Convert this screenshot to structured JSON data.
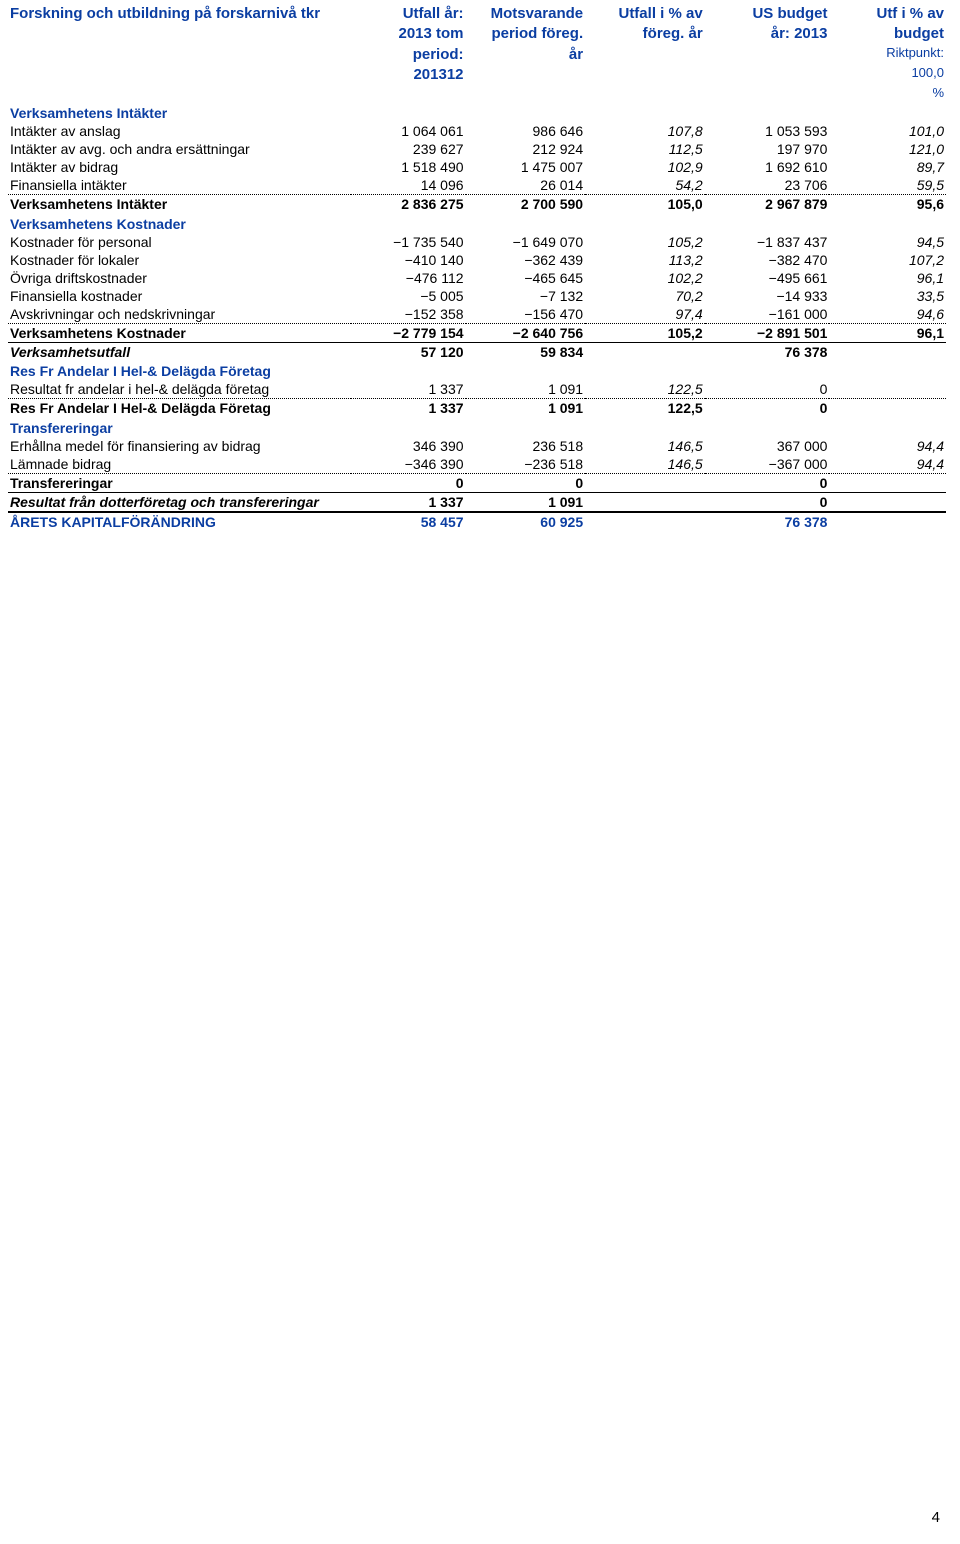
{
  "header": {
    "title": "Forskning och utbildning på forskarnivå tkr",
    "cols": [
      "Utfall år: 2013 tom period: 201312",
      "Motsvarande period föreg. år",
      "Utfall i % av föreg. år",
      "US budget år: 2013",
      "Utf i % av budget Riktpunkt: 100,0 %"
    ],
    "col1_l1": "Utfall år:",
    "col1_l2": "2013 tom",
    "col1_l3": "period:",
    "col1_l4": "201312",
    "col2_l1": "Motsvarande",
    "col2_l2": "period föreg.",
    "col2_l3": "år",
    "col3_l1": "Utfall i % av",
    "col3_l2": "föreg. år",
    "col4_l1": "US budget",
    "col4_l2": "år: 2013",
    "col5_l1": "Utf i % av",
    "col5_l2": "budget",
    "col5_l3": "Riktpunkt:",
    "col5_l4": "100,0",
    "col5_l5": "%"
  },
  "intakter": {
    "title": "Verksamhetens Intäkter",
    "rows": [
      {
        "label": "Intäkter av anslag",
        "c1": "1 064 061",
        "c2": "986 646",
        "c3": "107,8",
        "c4": "1 053 593",
        "c5": "101,0"
      },
      {
        "label": "Intäkter av avg. och andra ersättningar",
        "c1": "239 627",
        "c2": "212 924",
        "c3": "112,5",
        "c4": "197 970",
        "c5": "121,0"
      },
      {
        "label": "Intäkter av bidrag",
        "c1": "1 518 490",
        "c2": "1 475 007",
        "c3": "102,9",
        "c4": "1 692 610",
        "c5": "89,7"
      },
      {
        "label": "Finansiella intäkter",
        "c1": "14 096",
        "c2": "26 014",
        "c3": "54,2",
        "c4": "23 706",
        "c5": "59,5"
      }
    ],
    "subtotal": {
      "label": "Verksamhetens Intäkter",
      "c1": "2 836 275",
      "c2": "2 700 590",
      "c3": "105,0",
      "c4": "2 967 879",
      "c5": "95,6"
    }
  },
  "kostnader": {
    "title": "Verksamhetens Kostnader",
    "rows": [
      {
        "label": "Kostnader för personal",
        "c1": "−1 735 540",
        "c2": "−1 649 070",
        "c3": "105,2",
        "c4": "−1 837 437",
        "c5": "94,5"
      },
      {
        "label": "Kostnader för lokaler",
        "c1": "−410 140",
        "c2": "−362 439",
        "c3": "113,2",
        "c4": "−382 470",
        "c5": "107,2"
      },
      {
        "label": "Övriga driftskostnader",
        "c1": "−476 112",
        "c2": "−465 645",
        "c3": "102,2",
        "c4": "−495 661",
        "c5": "96,1"
      },
      {
        "label": "Finansiella kostnader",
        "c1": "−5 005",
        "c2": "−7 132",
        "c3": "70,2",
        "c4": "−14 933",
        "c5": "33,5"
      },
      {
        "label": "Avskrivningar och nedskrivningar",
        "c1": "−152 358",
        "c2": "−156 470",
        "c3": "97,4",
        "c4": "−161 000",
        "c5": "94,6"
      }
    ],
    "subtotal": {
      "label": "Verksamhetens Kostnader",
      "c1": "−2 779 154",
      "c2": "−2 640 756",
      "c3": "105,2",
      "c4": "−2 891 501",
      "c5": "96,1"
    }
  },
  "verksamhetsutfall": {
    "label": "Verksamhetsutfall",
    "c1": "57 120",
    "c2": "59 834",
    "c3": "",
    "c4": "76 378",
    "c5": ""
  },
  "resfr": {
    "title": "Res Fr Andelar I Hel-& Delägda Företag",
    "rows": [
      {
        "label": "Resultat fr andelar i hel-& delägda företag",
        "c1": "1 337",
        "c2": "1 091",
        "c3": "122,5",
        "c4": "0",
        "c5": ""
      }
    ],
    "subtotal": {
      "label": "Res Fr Andelar I Hel-& Delägda Företag",
      "c1": "1 337",
      "c2": "1 091",
      "c3": "122,5",
      "c4": "0",
      "c5": ""
    }
  },
  "transfer": {
    "title": "Transfereringar",
    "rows": [
      {
        "label": "Erhållna medel för finansiering av bidrag",
        "c1": "346 390",
        "c2": "236 518",
        "c3": "146,5",
        "c4": "367 000",
        "c5": "94,4"
      },
      {
        "label": "Lämnade bidrag",
        "c1": "−346 390",
        "c2": "−236 518",
        "c3": "146,5",
        "c4": "−367 000",
        "c5": "94,4"
      }
    ],
    "subtotal": {
      "label": "Transfereringar",
      "c1": "0",
      "c2": "0",
      "c3": "",
      "c4": "0",
      "c5": ""
    }
  },
  "resultat_dotter": {
    "label": "Resultat från dotterföretag och transfereringar",
    "c1": "1 337",
    "c2": "1 091",
    "c3": "",
    "c4": "0",
    "c5": ""
  },
  "arets": {
    "label": "ÅRETS KAPITALFÖRÄNDRING",
    "c1": "58 457",
    "c2": "60 925",
    "c3": "",
    "c4": "76 378",
    "c5": ""
  },
  "page_number": "4"
}
